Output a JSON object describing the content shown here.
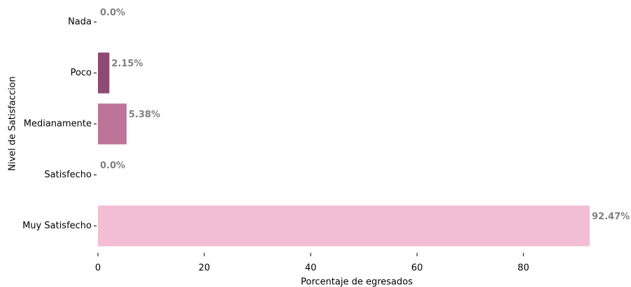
{
  "chart_data": {
    "type": "barh",
    "xlabel": "Porcentaje de egresados",
    "ylabel": "Nivel de Satisfaccion",
    "categories": [
      "Nada",
      "Poco",
      "Medianamente",
      "Satisfecho",
      "Muy Satisfecho"
    ],
    "values": [
      0,
      2.15,
      5.38,
      0,
      92.47
    ],
    "value_labels": [
      "0.0%",
      "2.15%",
      "5.38%",
      "0.0%",
      "92.47%"
    ],
    "colors": [
      null,
      "#8e4a72",
      "#bc7598",
      null,
      "#f3bed5"
    ],
    "xlim": [
      0,
      92.47
    ],
    "xticks": [
      0,
      20,
      40,
      60,
      80
    ],
    "grid": false
  }
}
